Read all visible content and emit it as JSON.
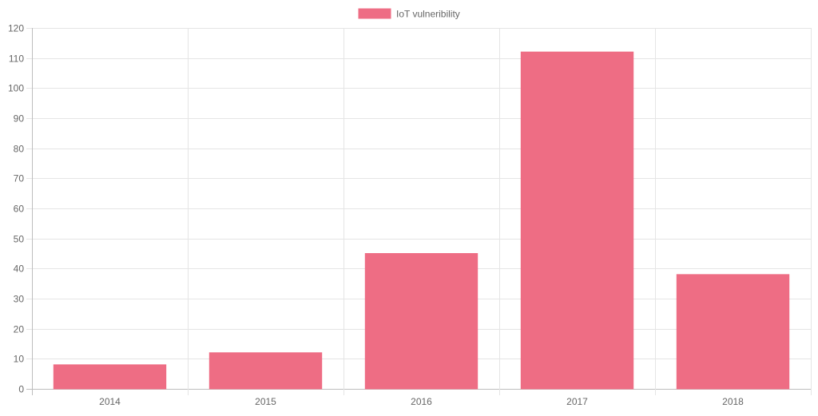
{
  "chart_data": {
    "type": "bar",
    "categories": [
      "2014",
      "2015",
      "2016",
      "2017",
      "2018"
    ],
    "series": [
      {
        "name": "IoT vulneribility",
        "values": [
          8,
          12,
          45,
          112,
          38
        ]
      }
    ],
    "ylim": [
      0,
      120
    ],
    "yticks": [
      0,
      10,
      20,
      30,
      40,
      50,
      60,
      70,
      80,
      90,
      100,
      110,
      120
    ],
    "grid": true,
    "legend_position": "top-center",
    "colors": {
      "bar_fill": "#ee6d84",
      "bar_border": "#ee6d84",
      "grid": "#e5e5e5",
      "axis": "#bdbdbd",
      "text": "#666666"
    }
  }
}
